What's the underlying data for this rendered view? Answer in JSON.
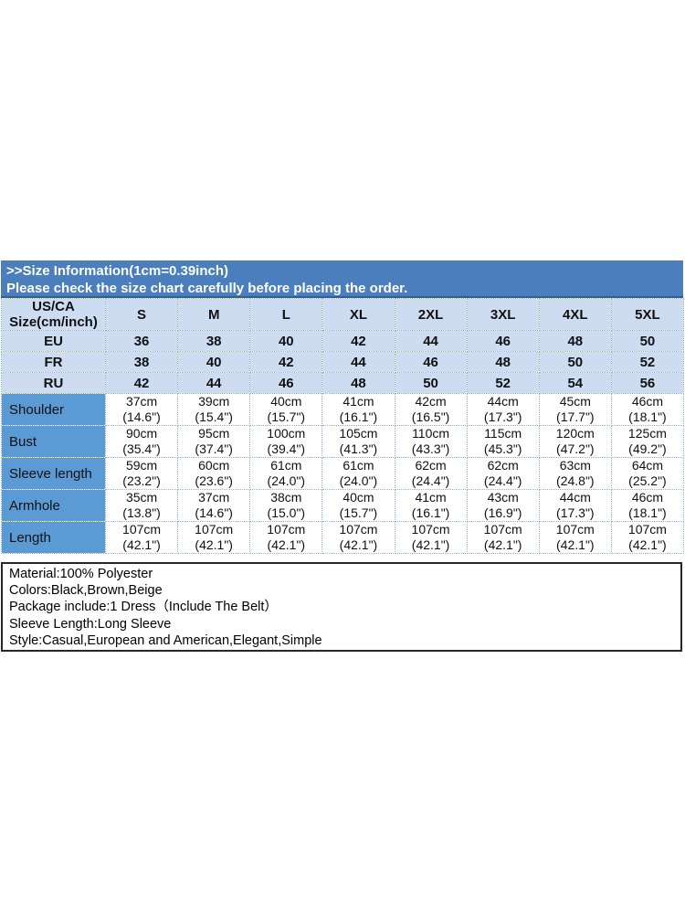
{
  "banner": {
    "line1": ">>Size Information(1cm=0.39inch)",
    "line2": "Please check the size chart carefully before placing the order."
  },
  "size_table": {
    "corner": {
      "line1": "US/CA",
      "line2": "Size(cm/inch)"
    },
    "size_headers": [
      "S",
      "M",
      "L",
      "XL",
      "2XL",
      "3XL",
      "4XL",
      "5XL"
    ],
    "region_rows": [
      {
        "label": "EU",
        "values": [
          "36",
          "38",
          "40",
          "42",
          "44",
          "46",
          "48",
          "50"
        ]
      },
      {
        "label": "FR",
        "values": [
          "38",
          "40",
          "42",
          "44",
          "46",
          "48",
          "50",
          "52"
        ]
      },
      {
        "label": "RU",
        "values": [
          "42",
          "44",
          "46",
          "48",
          "50",
          "52",
          "54",
          "56"
        ]
      }
    ],
    "measurement_rows": [
      {
        "label": "Shoulder",
        "cm": [
          "37cm",
          "39cm",
          "40cm",
          "41cm",
          "42cm",
          "44cm",
          "45cm",
          "46cm"
        ],
        "inch": [
          "(14.6\")",
          "(15.4\")",
          "(15.7\")",
          "(16.1\")",
          "(16.5\")",
          "(17.3\")",
          "(17.7\")",
          "(18.1\")"
        ]
      },
      {
        "label": "Bust",
        "cm": [
          "90cm",
          "95cm",
          "100cm",
          "105cm",
          "110cm",
          "115cm",
          "120cm",
          "125cm"
        ],
        "inch": [
          "(35.4\")",
          "(37.4\")",
          "(39.4\")",
          "(41.3\")",
          "(43.3\")",
          "(45.3\")",
          "(47.2\")",
          "(49.2\")"
        ]
      },
      {
        "label": "Sleeve length",
        "cm": [
          "59cm",
          "60cm",
          "61cm",
          "61cm",
          "62cm",
          "62cm",
          "63cm",
          "64cm"
        ],
        "inch": [
          "(23.2\")",
          "(23.6\")",
          "(24.0\")",
          "(24.0\")",
          "(24.4\")",
          "(24.4\")",
          "(24.8\")",
          "(25.2\")"
        ]
      },
      {
        "label": "Armhole",
        "cm": [
          "35cm",
          "37cm",
          "38cm",
          "40cm",
          "41cm",
          "43cm",
          "44cm",
          "46cm"
        ],
        "inch": [
          "(13.8\")",
          "(14.6\")",
          "(15.0\")",
          "(15.7\")",
          "(16.1\")",
          "(16.9\")",
          "(17.3\")",
          "(18.1\")"
        ]
      },
      {
        "label": "Length",
        "cm": [
          "107cm",
          "107cm",
          "107cm",
          "107cm",
          "107cm",
          "107cm",
          "107cm",
          "107cm"
        ],
        "inch": [
          "(42.1\")",
          "(42.1\")",
          "(42.1\")",
          "(42.1\")",
          "(42.1\")",
          "(42.1\")",
          "(42.1\")",
          "(42.1\")"
        ]
      }
    ]
  },
  "details": {
    "lines": [
      "Material:100% Polyester",
      "Colors:Black,Brown,Beige",
      "Package include:1 Dress（Include The Belt）",
      "Sleeve Length:Long Sleeve",
      "Style:Casual,European and American,Elegant,Simple"
    ]
  },
  "colors": {
    "banner_blue": "#4a7ebc",
    "label_blue": "#5b9bd5",
    "light_blue_cell": "#cddcf1",
    "grid_line": "#95b3d7",
    "banner_text": "#ffffff",
    "body_text": "#111111"
  }
}
